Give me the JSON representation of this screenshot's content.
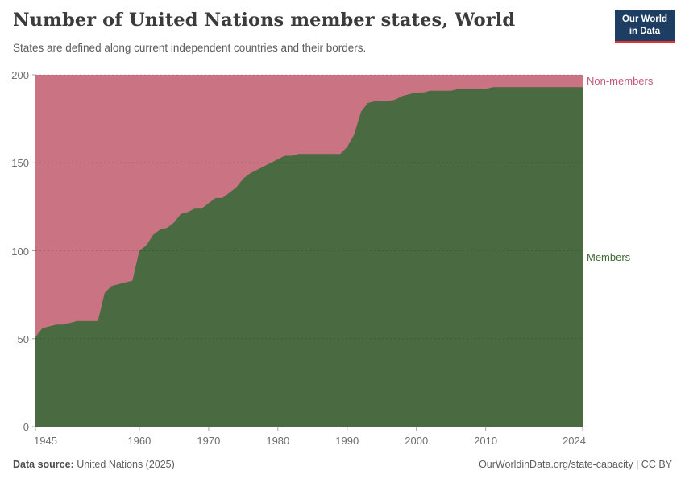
{
  "header": {
    "title": "Number of United Nations member states, World",
    "subtitle": "States are defined along current independent countries and their borders.",
    "logo": {
      "line1": "Our World",
      "line2": "in Data"
    }
  },
  "chart_data": {
    "type": "area",
    "stacked": true,
    "title": "Number of United Nations member states, World",
    "xlabel": "",
    "ylabel": "",
    "ylim": [
      0,
      200
    ],
    "total": 200,
    "grid": "dashed horizontal gridlines at 50,100,150,200",
    "legend_position": "right edge labels",
    "x": [
      1945,
      1946,
      1947,
      1948,
      1949,
      1950,
      1951,
      1952,
      1953,
      1954,
      1955,
      1956,
      1957,
      1958,
      1959,
      1960,
      1961,
      1962,
      1963,
      1964,
      1965,
      1966,
      1967,
      1968,
      1969,
      1970,
      1971,
      1972,
      1973,
      1974,
      1975,
      1976,
      1977,
      1978,
      1979,
      1980,
      1981,
      1982,
      1983,
      1984,
      1985,
      1986,
      1987,
      1988,
      1989,
      1990,
      1991,
      1992,
      1993,
      1994,
      1995,
      1996,
      1997,
      1998,
      1999,
      2000,
      2001,
      2002,
      2003,
      2004,
      2005,
      2006,
      2007,
      2008,
      2009,
      2010,
      2011,
      2012,
      2013,
      2014,
      2015,
      2016,
      2017,
      2018,
      2019,
      2020,
      2021,
      2022,
      2023,
      2024
    ],
    "series": [
      {
        "name": "Members",
        "color": "#4a6a42",
        "label_color": "#3d6832",
        "values": [
          51,
          56,
          57,
          58,
          58,
          59,
          60,
          60,
          60,
          60,
          76,
          80,
          81,
          82,
          83,
          100,
          103,
          109,
          112,
          113,
          116,
          121,
          122,
          124,
          124,
          127,
          130,
          130,
          133,
          136,
          141,
          144,
          146,
          148,
          150,
          152,
          154,
          154,
          155,
          155,
          155,
          155,
          155,
          155,
          155,
          159,
          166,
          179,
          184,
          185,
          185,
          185,
          186,
          188,
          189,
          190,
          190,
          191,
          191,
          191,
          191,
          192,
          192,
          192,
          192,
          192,
          193,
          193,
          193,
          193,
          193,
          193,
          193,
          193,
          193,
          193,
          193,
          193,
          193,
          193
        ]
      },
      {
        "name": "Non-members",
        "color": "#c97383",
        "label_color": "#c25a74",
        "values": [
          149,
          144,
          143,
          142,
          142,
          141,
          140,
          140,
          140,
          140,
          124,
          120,
          119,
          118,
          117,
          100,
          97,
          91,
          88,
          87,
          84,
          79,
          78,
          76,
          76,
          73,
          70,
          70,
          67,
          64,
          59,
          56,
          54,
          52,
          50,
          48,
          46,
          46,
          45,
          45,
          45,
          45,
          45,
          45,
          45,
          41,
          34,
          21,
          16,
          15,
          15,
          15,
          14,
          12,
          11,
          10,
          10,
          9,
          9,
          9,
          9,
          8,
          8,
          8,
          8,
          8,
          7,
          7,
          7,
          7,
          7,
          7,
          7,
          7,
          7,
          7,
          7,
          7,
          7,
          7
        ]
      }
    ],
    "y_ticks": [
      0,
      50,
      100,
      150,
      200
    ],
    "x_ticks": [
      1945,
      1960,
      1970,
      1980,
      1990,
      2000,
      2010,
      2024
    ]
  },
  "footer": {
    "source_label": "Data source:",
    "source_value": " United Nations (2025)",
    "credit": "OurWorldinData.org/state-capacity | CC BY"
  }
}
